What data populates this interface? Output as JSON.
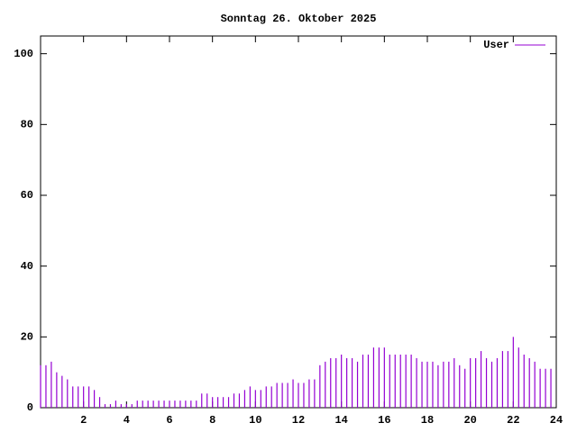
{
  "chart_data": {
    "type": "impulse",
    "title": "Sonntag 26. Oktober 2025",
    "x": [
      0,
      0.25,
      0.5,
      0.75,
      1,
      1.25,
      1.5,
      1.75,
      2,
      2.25,
      2.5,
      2.75,
      3,
      3.25,
      3.5,
      3.75,
      4,
      4.25,
      4.5,
      4.75,
      5,
      5.25,
      5.5,
      5.75,
      6,
      6.25,
      6.5,
      6.75,
      7,
      7.25,
      7.5,
      7.75,
      8,
      8.25,
      8.5,
      8.75,
      9,
      9.25,
      9.5,
      9.75,
      10,
      10.25,
      10.5,
      10.75,
      11,
      11.25,
      11.5,
      11.75,
      12,
      12.25,
      12.5,
      12.75,
      13,
      13.25,
      13.5,
      13.75,
      14,
      14.25,
      14.5,
      14.75,
      15,
      15.25,
      15.5,
      15.75,
      16,
      16.25,
      16.5,
      16.75,
      17,
      17.25,
      17.5,
      17.75,
      18,
      18.25,
      18.5,
      18.75,
      19,
      19.25,
      19.5,
      19.75,
      20,
      20.25,
      20.5,
      20.75,
      21,
      21.25,
      21.5,
      21.75,
      22,
      22.25,
      22.5,
      22.75,
      23,
      23.25,
      23.5,
      23.75
    ],
    "series": [
      {
        "name": "User",
        "color": "#9400d3",
        "values": [
          12,
          12,
          13,
          10,
          9,
          8,
          6,
          6,
          6,
          6,
          5,
          3,
          1,
          1,
          2,
          1,
          1,
          1,
          2,
          2,
          2,
          2,
          2,
          2,
          2,
          2,
          2,
          2,
          2,
          2,
          4,
          4,
          3,
          3,
          3,
          3,
          4,
          4,
          5,
          6,
          5,
          5,
          6,
          6,
          7,
          7,
          7,
          8,
          7,
          7,
          8,
          8,
          12,
          13,
          14,
          14,
          15,
          14,
          14,
          13,
          15,
          15,
          17,
          17,
          17,
          15,
          15,
          15,
          15,
          15,
          14,
          13,
          13,
          13,
          12,
          13,
          13,
          14,
          12,
          11,
          14,
          14,
          16,
          14,
          13,
          14,
          16,
          16,
          20,
          17,
          15,
          14,
          13,
          11,
          11,
          11
        ]
      }
    ],
    "xlim": [
      0,
      24
    ],
    "xticks": [
      2,
      4,
      6,
      8,
      10,
      12,
      14,
      16,
      18,
      20,
      22,
      24
    ],
    "ylim": [
      0,
      105
    ],
    "yticks": [
      0,
      20,
      40,
      60,
      80,
      100
    ],
    "legend": "upper right"
  }
}
